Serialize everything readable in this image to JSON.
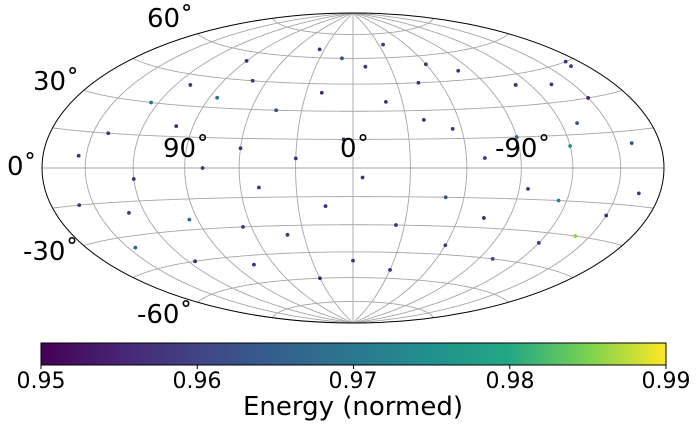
{
  "chart_data": {
    "type": "scatter",
    "projection": "hammer",
    "title": "",
    "lat_tick_labels": [
      "60˚",
      "30˚",
      "0˚",
      "-30˚",
      "-60˚"
    ],
    "lon_tick_labels": [
      "90˚",
      "0˚",
      "-90˚"
    ],
    "lat_ticks": [
      60,
      30,
      0,
      -30,
      -60
    ],
    "lon_ticks": [
      90,
      0,
      -90
    ],
    "lon_gridlines": [
      -150,
      -120,
      -90,
      -60,
      -30,
      0,
      30,
      60,
      90,
      120,
      150
    ],
    "lat_gridlines": [
      -75,
      -60,
      -45,
      -30,
      -15,
      0,
      15,
      30,
      45,
      60,
      75
    ],
    "grid": true,
    "colorbar": {
      "label": "Energy (normed)",
      "colormap": "viridis",
      "range": [
        0.95,
        0.99
      ],
      "ticks": [
        0.95,
        0.96,
        0.97,
        0.98,
        0.99
      ],
      "tick_labels": [
        "0.95",
        "0.96",
        "0.97",
        "0.98",
        "0.99"
      ],
      "orientation": "horizontal",
      "placement": "bottom"
    },
    "points": [
      {
        "lon": -135,
        "lat": 38,
        "energy": 0.957
      },
      {
        "lon": -150,
        "lat": 30,
        "energy": 0.955
      },
      {
        "lon": -160,
        "lat": 10,
        "energy": 0.962
      },
      {
        "lon": -165,
        "lat": -10,
        "energy": 0.958
      },
      {
        "lon": -150,
        "lat": -20,
        "energy": 0.956
      },
      {
        "lon": -140,
        "lat": -30,
        "energy": 0.986
      },
      {
        "lon": -120,
        "lat": -35,
        "energy": 0.957
      },
      {
        "lon": -100,
        "lat": -45,
        "energy": 0.96
      },
      {
        "lon": -110,
        "lat": 40,
        "energy": 0.956
      },
      {
        "lon": -80,
        "lat": 50,
        "energy": 0.958
      },
      {
        "lon": -60,
        "lat": 55,
        "energy": 0.957
      },
      {
        "lon": -90,
        "lat": 15,
        "energy": 0.968
      },
      {
        "lon": -70,
        "lat": 5,
        "energy": 0.957
      },
      {
        "lon": -120,
        "lat": 10,
        "energy": 0.975
      },
      {
        "lon": -130,
        "lat": 20,
        "energy": 0.962
      },
      {
        "lon": -40,
        "lat": 25,
        "energy": 0.956
      },
      {
        "lon": -20,
        "lat": 35,
        "energy": 0.958
      },
      {
        "lon": -10,
        "lat": 55,
        "energy": 0.957
      },
      {
        "lon": 10,
        "lat": 60,
        "energy": 0.962
      },
      {
        "lon": 20,
        "lat": 40,
        "energy": 0.956
      },
      {
        "lon": 5,
        "lat": 15,
        "energy": 0.955
      },
      {
        "lon": -5,
        "lat": -5,
        "energy": 0.957
      },
      {
        "lon": 15,
        "lat": -20,
        "energy": 0.956
      },
      {
        "lon": -25,
        "lat": -30,
        "energy": 0.957
      },
      {
        "lon": -50,
        "lat": -15,
        "energy": 0.962
      },
      {
        "lon": -60,
        "lat": -40,
        "energy": 0.958
      },
      {
        "lon": -30,
        "lat": -55,
        "energy": 0.956
      },
      {
        "lon": 0,
        "lat": -50,
        "energy": 0.957
      },
      {
        "lon": 30,
        "lat": -60,
        "energy": 0.955
      },
      {
        "lon": 40,
        "lat": -35,
        "energy": 0.958
      },
      {
        "lon": 50,
        "lat": -10,
        "energy": 0.957
      },
      {
        "lon": 60,
        "lat": 10,
        "energy": 0.956
      },
      {
        "lon": 45,
        "lat": 30,
        "energy": 0.962
      },
      {
        "lon": 70,
        "lat": 45,
        "energy": 0.957
      },
      {
        "lon": 90,
        "lat": 55,
        "energy": 0.956
      },
      {
        "lon": 110,
        "lat": 40,
        "energy": 0.958
      },
      {
        "lon": 100,
        "lat": 20,
        "energy": 0.955
      },
      {
        "lon": 80,
        "lat": 0,
        "energy": 0.957
      },
      {
        "lon": 120,
        "lat": -5,
        "energy": 0.956
      },
      {
        "lon": 95,
        "lat": -25,
        "energy": 0.968
      },
      {
        "lon": 130,
        "lat": -20,
        "energy": 0.957
      },
      {
        "lon": 140,
        "lat": 15,
        "energy": 0.958
      },
      {
        "lon": 155,
        "lat": 5,
        "energy": 0.956
      },
      {
        "lon": 160,
        "lat": -15,
        "energy": 0.957
      },
      {
        "lon": 145,
        "lat": -35,
        "energy": 0.965
      },
      {
        "lon": 115,
        "lat": -45,
        "energy": 0.956
      },
      {
        "lon": 75,
        "lat": -50,
        "energy": 0.957
      },
      {
        "lon": 125,
        "lat": 30,
        "energy": 0.97
      },
      {
        "lon": 65,
        "lat": -30,
        "energy": 0.958
      },
      {
        "lon": 30,
        "lat": 5,
        "energy": 0.956
      },
      {
        "lon": -95,
        "lat": -10,
        "energy": 0.957
      },
      {
        "lon": -115,
        "lat": -15,
        "energy": 0.972
      },
      {
        "lon": -75,
        "lat": -25,
        "energy": 0.956
      },
      {
        "lon": -45,
        "lat": 45,
        "energy": 0.957
      },
      {
        "lon": 35,
        "lat": 65,
        "energy": 0.956
      },
      {
        "lon": -35,
        "lat": 68,
        "energy": 0.958
      },
      {
        "lon": -170,
        "lat": 45,
        "energy": 0.956
      },
      {
        "lon": -168,
        "lat": 43,
        "energy": 0.957
      },
      {
        "lon": 85,
        "lat": 35,
        "energy": 0.968
      },
      {
        "lon": -55,
        "lat": 20,
        "energy": 0.957
      }
    ]
  }
}
